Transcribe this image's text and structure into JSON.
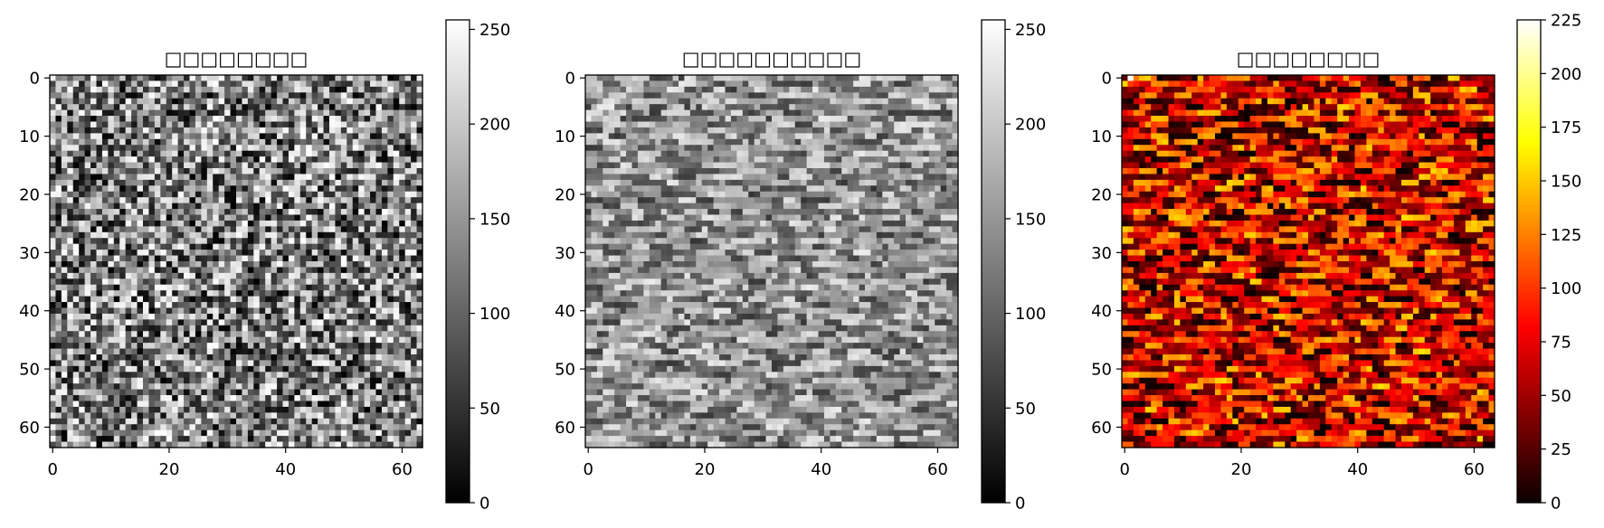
{
  "chart_data": [
    {
      "type": "heatmap",
      "title": "□□□□□□□□",
      "colormap": "gray",
      "grid_size": [
        64,
        64
      ],
      "pattern": "random noise",
      "value_range": [
        0,
        255
      ],
      "xlim": [
        -0.5,
        63.5
      ],
      "ylim": [
        63.5,
        -0.5
      ],
      "x_ticks": [
        "0",
        "20",
        "40",
        "60"
      ],
      "y_ticks": [
        "0",
        "10",
        "20",
        "30",
        "40",
        "50",
        "60"
      ],
      "colorbar": {
        "vmin": 0,
        "vmax": 255,
        "ticks": [
          "0",
          "50",
          "100",
          "150",
          "200",
          "250"
        ]
      }
    },
    {
      "type": "heatmap",
      "title": "□□□□□□□□□□",
      "colormap": "gray",
      "grid_size": [
        64,
        64
      ],
      "pattern": "row-banded noise",
      "value_range": [
        0,
        255
      ],
      "xlim": [
        -0.5,
        63.5
      ],
      "ylim": [
        63.5,
        -0.5
      ],
      "x_ticks": [
        "0",
        "20",
        "40",
        "60"
      ],
      "y_ticks": [
        "0",
        "10",
        "20",
        "30",
        "40",
        "50",
        "60"
      ],
      "colorbar": {
        "vmin": 0,
        "vmax": 255,
        "ticks": [
          "0",
          "50",
          "100",
          "150",
          "200",
          "250"
        ]
      }
    },
    {
      "type": "heatmap",
      "title": "□□□□□□□□",
      "colormap": "hot",
      "grid_size": [
        64,
        64
      ],
      "pattern": "row-banded noise",
      "value_range": [
        0,
        225
      ],
      "xlim": [
        -0.5,
        63.5
      ],
      "ylim": [
        63.5,
        -0.5
      ],
      "x_ticks": [
        "0",
        "20",
        "40",
        "60"
      ],
      "y_ticks": [
        "0",
        "10",
        "20",
        "30",
        "40",
        "50",
        "60"
      ],
      "colorbar": {
        "vmin": 0,
        "vmax": 225,
        "ticks": [
          "0",
          "25",
          "50",
          "75",
          "100",
          "125",
          "150",
          "175",
          "200",
          "225"
        ]
      }
    }
  ]
}
